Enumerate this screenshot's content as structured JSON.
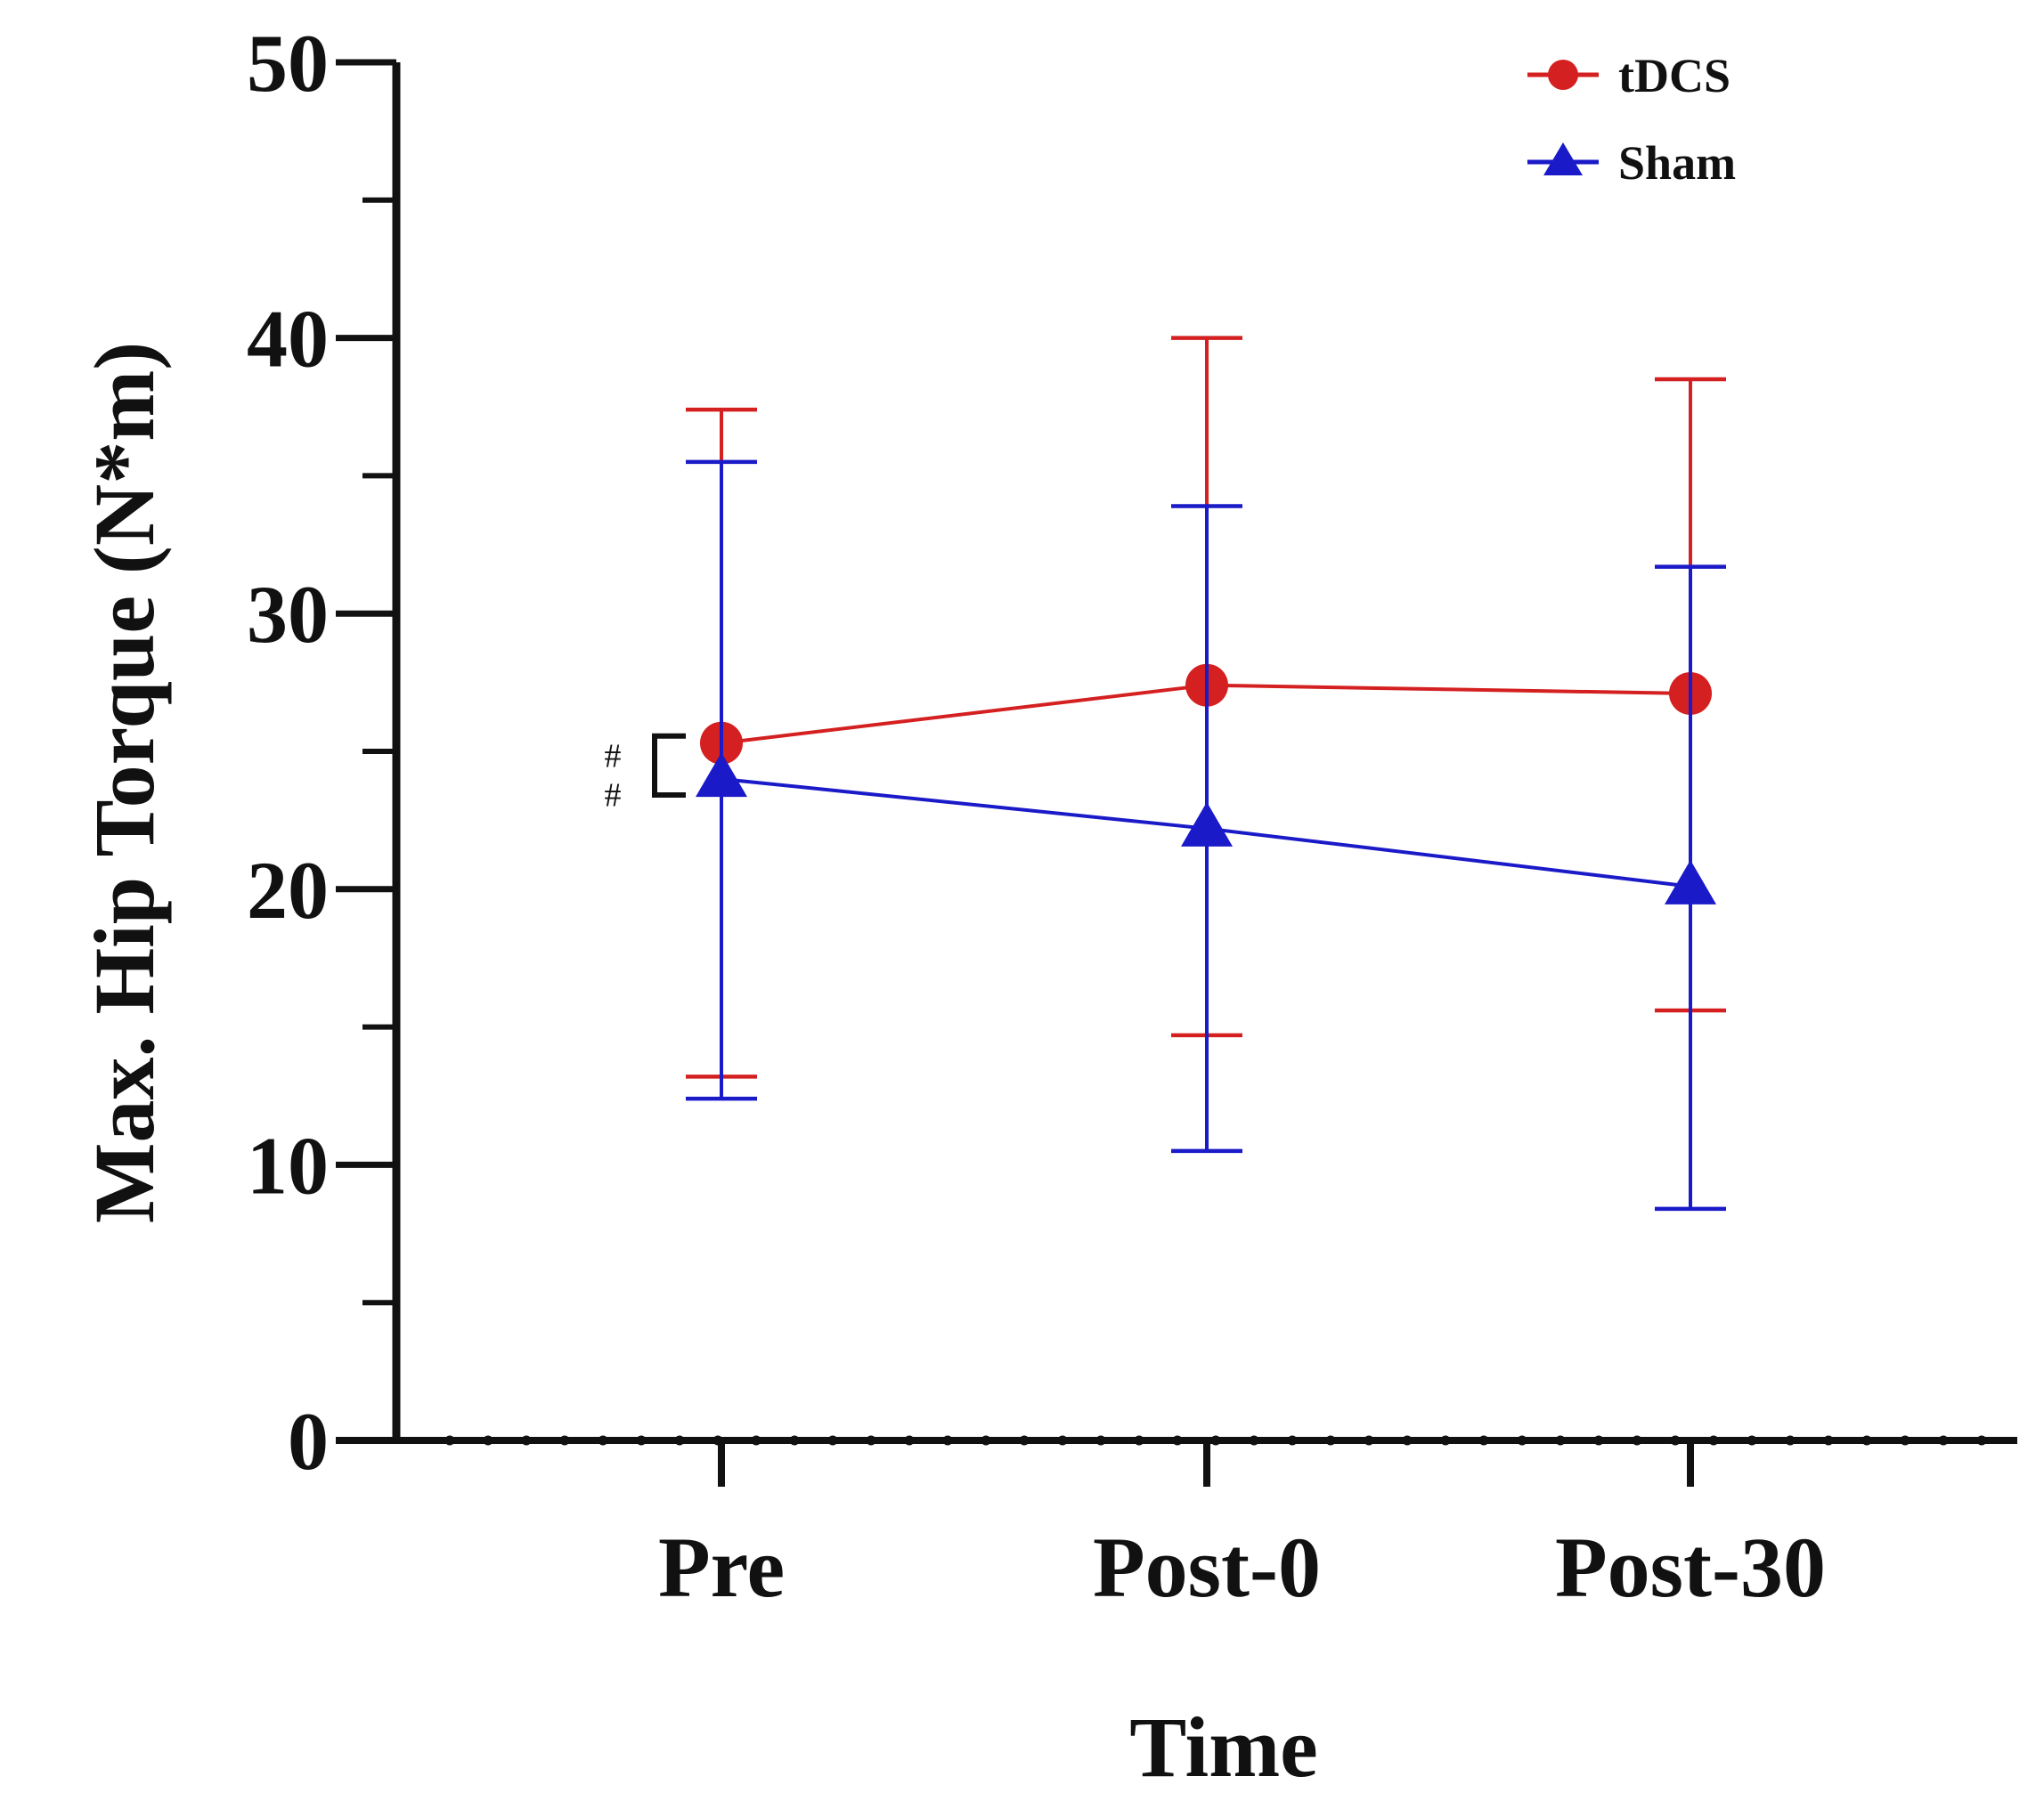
{
  "chart_data": {
    "type": "line",
    "title": "",
    "xlabel": "Time",
    "ylabel": "Max. Hip Torque (N*m)",
    "categories": [
      "Pre",
      "Post-0",
      "Post-30"
    ],
    "ylim": [
      0,
      50
    ],
    "yticks": [
      0,
      10,
      20,
      30,
      40,
      50
    ],
    "y_minor_step": 5,
    "grid": false,
    "legend_position": "top-right",
    "series": [
      {
        "name": "tDCS",
        "marker": "circle",
        "color": "#d42020",
        "values": [
          25.3,
          27.4,
          27.1
        ],
        "error_upper": [
          37.4,
          40.0,
          38.5
        ],
        "error_lower": [
          13.2,
          14.7,
          15.6
        ]
      },
      {
        "name": "Sham",
        "marker": "triangle",
        "color": "#1a1ac8",
        "values": [
          24.0,
          22.2,
          20.1
        ],
        "error_upper": [
          35.5,
          33.9,
          31.7
        ],
        "error_lower": [
          12.4,
          10.5,
          8.4
        ]
      }
    ],
    "annotations": [
      {
        "text": "#",
        "category": "Pre",
        "between_series": [
          "tDCS",
          "Sham"
        ]
      },
      {
        "text": "#",
        "category": "Pre",
        "between_series": [
          "tDCS",
          "Sham"
        ]
      }
    ]
  }
}
